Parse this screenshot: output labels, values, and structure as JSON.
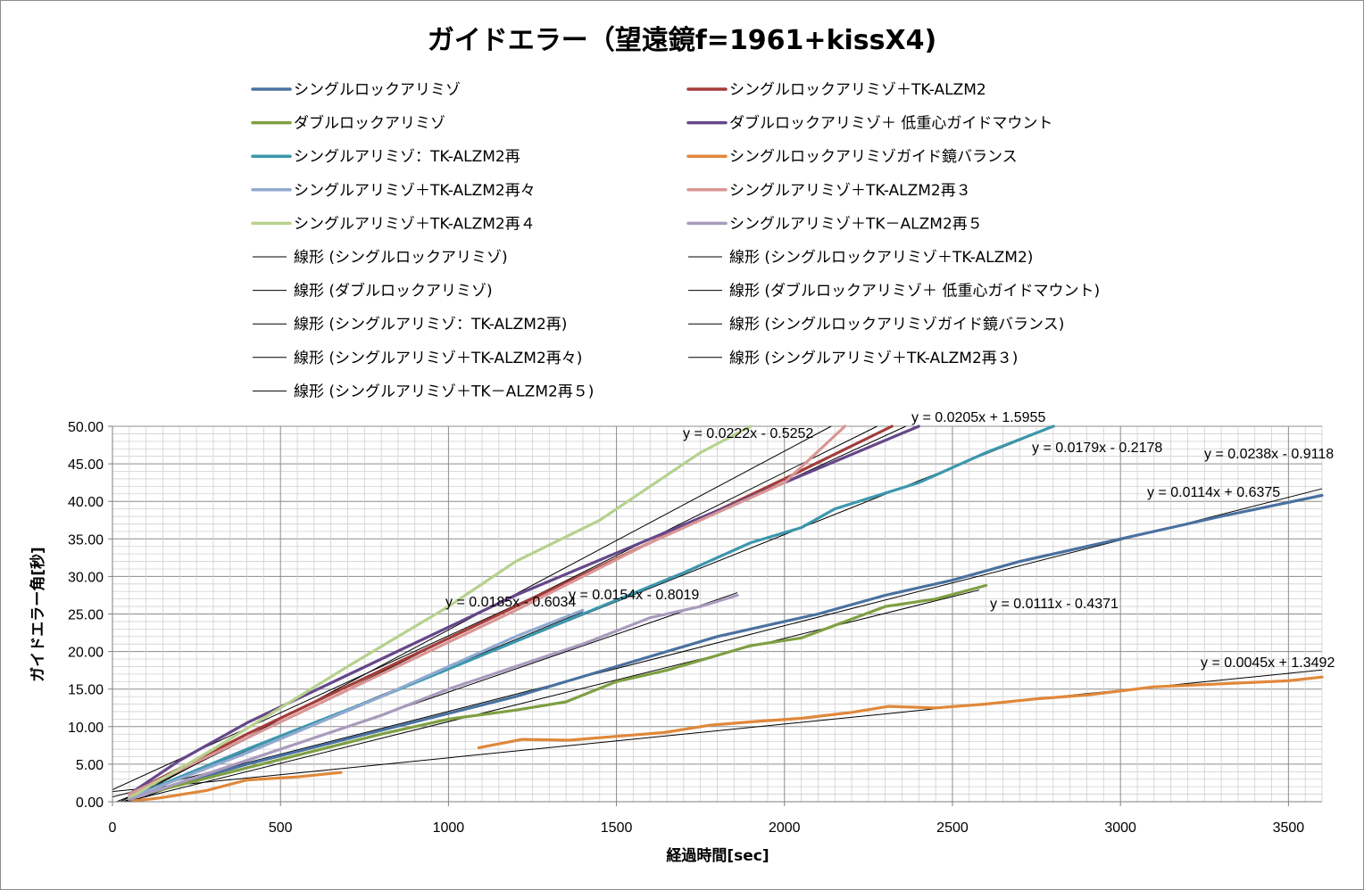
{
  "chart_data": {
    "type": "line",
    "title": "ガイドエラー（望遠鏡f=1961+kissX4)",
    "xlabel": "経過時間[sec]",
    "ylabel": "ガイドエラー角[秒]",
    "xlim": [
      0,
      3600
    ],
    "ylim": [
      0,
      50
    ],
    "x_ticks": [
      "0",
      "500",
      "1000",
      "1500",
      "2000",
      "2500",
      "3000",
      "3500"
    ],
    "y_ticks": [
      "0.00",
      "5.00",
      "10.00",
      "15.00",
      "20.00",
      "25.00",
      "30.00",
      "35.00",
      "40.00",
      "45.00",
      "50.00"
    ],
    "grid": true,
    "legend_position": "top",
    "series": [
      {
        "name": "シングルロックアリミゾ",
        "color": "#4a71a0",
        "x": [
          50,
          400,
          800,
          1200,
          1500,
          1800,
          2100,
          2300,
          2500,
          2700,
          3000,
          3300,
          3600
        ],
        "y": [
          0.5,
          5.0,
          9.5,
          14.0,
          18.0,
          22.0,
          25.0,
          27.5,
          29.5,
          32.0,
          35.0,
          38.0,
          40.8
        ]
      },
      {
        "name": "シングルロックアリミゾ＋TK-ALZM2",
        "color": "#a43c3a",
        "x": [
          50,
          400,
          800,
          1200,
          1600,
          2000,
          2320
        ],
        "y": [
          1.0,
          9.0,
          17.5,
          26.0,
          34.5,
          43.0,
          50.0
        ]
      },
      {
        "name": "ダブルロックアリミゾ",
        "color": "#7f9f42",
        "x": [
          50,
          400,
          800,
          1000,
          1200,
          1350,
          1500,
          1650,
          1900,
          2050,
          2300,
          2450,
          2600
        ],
        "y": [
          0.5,
          4.5,
          9.0,
          11.0,
          12.2,
          13.3,
          16.0,
          17.5,
          20.8,
          21.8,
          26.0,
          27.0,
          28.8
        ]
      },
      {
        "name": "ダブルロックアリミゾ＋低重心ガイドマウント",
        "color": "#65478a",
        "x": [
          50,
          200,
          400,
          800,
          1200,
          1600,
          2000,
          2400
        ],
        "y": [
          1.0,
          5.5,
          10.5,
          19.0,
          27.5,
          35.0,
          42.5,
          50.0
        ]
      },
      {
        "name": "シングルアリミゾ：TK-ALZM2再",
        "color": "#3c97ad",
        "x": [
          50,
          400,
          800,
          1100,
          1400,
          1700,
          1900,
          2050,
          2150,
          2400,
          2600,
          2800
        ],
        "y": [
          0.5,
          7.0,
          14.0,
          19.5,
          25.0,
          30.5,
          34.5,
          36.5,
          39.0,
          42.5,
          46.5,
          50.0
        ]
      },
      {
        "name": "シングルロックアリミゾガイド鏡バランス",
        "color": "#e0883a",
        "x": [
          60,
          140,
          280,
          400,
          550,
          680
        ],
        "y": [
          0.1,
          0.5,
          1.5,
          2.9,
          3.3,
          3.9
        ]
      },
      {
        "name": "シングルロックアリミゾガイド鏡バランス",
        "color": "#e0883a",
        "x": [
          1090,
          1220,
          1360,
          1500,
          1640,
          1780,
          1920,
          2050,
          2200,
          2310,
          2450,
          2600,
          2750,
          2900,
          3100,
          3300,
          3500,
          3600
        ],
        "y": [
          7.2,
          8.3,
          8.2,
          8.7,
          9.2,
          10.2,
          10.7,
          11.1,
          11.9,
          12.7,
          12.5,
          13.0,
          13.7,
          14.2,
          15.3,
          15.7,
          16.1,
          16.6
        ]
      },
      {
        "name": "シングルアリミゾ＋TK-ALZM2再々",
        "color": "#90a9cf",
        "x": [
          50,
          400,
          800,
          1200,
          1400
        ],
        "y": [
          0.5,
          6.5,
          14.0,
          22.0,
          25.5
        ]
      },
      {
        "name": "シングルアリミゾ＋TK-ALZM2再３",
        "color": "#d99694",
        "x": [
          50,
          400,
          800,
          1200,
          1600,
          2000,
          2180
        ],
        "y": [
          1.0,
          8.5,
          17.0,
          25.5,
          34.5,
          42.5,
          50.0
        ]
      },
      {
        "name": "シングルアリミゾ＋TK-ALZM2再４",
        "color": "#b7d18e",
        "x": [
          50,
          300,
          500,
          700,
          850,
          1000,
          1200,
          1450,
          1600,
          1750,
          1900
        ],
        "y": [
          0.5,
          7.0,
          12.5,
          18.0,
          22.0,
          26.0,
          32.0,
          37.5,
          42.0,
          46.5,
          50.0
        ]
      },
      {
        "name": "シングルアリミゾ＋TK－ALZM2再５",
        "color": "#a99bbd",
        "x": [
          50,
          400,
          800,
          1000,
          1200,
          1400,
          1600,
          1750,
          1860
        ],
        "y": [
          0.3,
          5.5,
          11.5,
          15.0,
          18.0,
          21.0,
          24.5,
          26.0,
          27.5
        ]
      }
    ],
    "trendlines": [
      {
        "name": "線形 (シングルロックアリミゾ)",
        "slope": 0.0114,
        "intercept": 0.6375,
        "x_end": 3600,
        "label": "y = 0.0114x + 0.6375"
      },
      {
        "name": "線形 (シングルロックアリミゾ＋TK-ALZM2)",
        "slope": 0.0205,
        "intercept": 1.5955,
        "x_end": 2400,
        "label": "y = 0.0205x + 1.5955"
      },
      {
        "name": "線形 (ダブルロックアリミゾ)",
        "slope": 0.0111,
        "intercept": -0.4371,
        "x_end": 2580,
        "label": "y = 0.0111x - 0.4371"
      },
      {
        "name": "線形 (ダブルロックアリミゾ＋低重心ガイドマウント)",
        "slope": 0.0222,
        "intercept": -0.5252,
        "x_end": 2300,
        "label": "y = 0.0222x - 0.5252"
      },
      {
        "name": "線形 (シングルアリミゾ：TK-ALZM2再)",
        "slope": 0.0179,
        "intercept": -0.2178,
        "x_end": 2900,
        "label": "y = 0.0179x - 0.2178"
      },
      {
        "name": "線形 (シングルロックアリミゾガイド鏡バランス)",
        "slope": 0.0045,
        "intercept": 1.3492,
        "x_end": 3600,
        "label": "y = 0.0045x + 1.3492"
      },
      {
        "name": "線形 (シングルアリミゾ＋TK-ALZM2再々)",
        "slope": 0.0185,
        "intercept": -0.6034,
        "x_end": 1400,
        "label": "y = 0.0185x - 0.6034"
      },
      {
        "name": "線形 (シングルアリミゾ＋TK-ALZM2再３)",
        "slope": 0.0238,
        "intercept": -0.9118,
        "x_end": 2150,
        "label": "y = 0.0238x - 0.9118"
      },
      {
        "name": "線形 (シングルアリミゾ＋TK－ALZM2再５)",
        "slope": 0.0154,
        "intercept": -0.8019,
        "x_end": 1860,
        "label": "y = 0.0154x - 0.8019"
      }
    ],
    "legend": [
      {
        "label": "シングルロックアリミゾ",
        "color": "#4a71a0",
        "kind": "series"
      },
      {
        "label": "シングルロックアリミゾ＋TK-ALZM2",
        "color": "#a43c3a",
        "kind": "series"
      },
      {
        "label": "ダブルロックアリミゾ",
        "color": "#7f9f42",
        "kind": "series"
      },
      {
        "label": "ダブルロックアリミゾ＋ 低重心ガイドマウント",
        "color": "#65478a",
        "kind": "series"
      },
      {
        "label": "シングルアリミゾ：TK-ALZM2再",
        "color": "#3c97ad",
        "kind": "series"
      },
      {
        "label": "シングルロックアリミゾガイド鏡バランス",
        "color": "#e0883a",
        "kind": "series"
      },
      {
        "label": "シングルアリミゾ＋TK-ALZM2再々",
        "color": "#90a9cf",
        "kind": "series"
      },
      {
        "label": "シングルアリミゾ＋TK-ALZM2再３",
        "color": "#d99694",
        "kind": "series"
      },
      {
        "label": "シングルアリミゾ＋TK-ALZM2再４",
        "color": "#b7d18e",
        "kind": "series"
      },
      {
        "label": "シングルアリミゾ＋TK－ALZM2再５",
        "color": "#a99bbd",
        "kind": "series"
      },
      {
        "label": "線形 (シングルロックアリミゾ)",
        "color": "#000000",
        "kind": "trend"
      },
      {
        "label": "線形 (シングルロックアリミゾ＋TK-ALZM2)",
        "color": "#000000",
        "kind": "trend"
      },
      {
        "label": "線形 (ダブルロックアリミゾ)",
        "color": "#000000",
        "kind": "trend"
      },
      {
        "label": "線形 (ダブルロックアリミゾ＋ 低重心ガイドマウント)",
        "color": "#000000",
        "kind": "trend"
      },
      {
        "label": "線形 (シングルアリミゾ：TK-ALZM2再)",
        "color": "#000000",
        "kind": "trend"
      },
      {
        "label": "線形 (シングルロックアリミゾガイド鏡バランス)",
        "color": "#000000",
        "kind": "trend"
      },
      {
        "label": "線形 (シングルアリミゾ＋TK-ALZM2再々)",
        "color": "#000000",
        "kind": "trend"
      },
      {
        "label": "線形 (シングルアリミゾ＋TK-ALZM2再３)",
        "color": "#000000",
        "kind": "trend"
      },
      {
        "label": "線形 (シングルアリミゾ＋TK－ALZM2再５)",
        "color": "#000000",
        "kind": "trend"
      }
    ]
  }
}
